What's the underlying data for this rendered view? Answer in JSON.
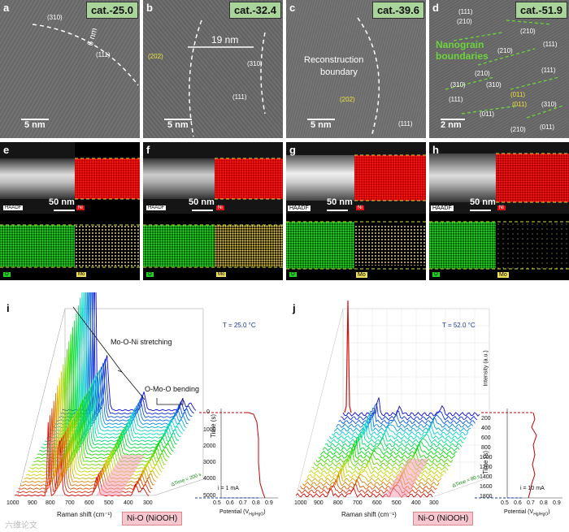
{
  "tem_panels": [
    {
      "letter": "a",
      "cat": "cat.-25.0",
      "scale": "5 nm",
      "annot": [
        "(310)",
        "6 nm",
        "(111)"
      ]
    },
    {
      "letter": "b",
      "cat": "cat.-32.4",
      "scale": "5 nm",
      "annot": [
        "(202)",
        "19 nm",
        "(310)",
        "(111)"
      ]
    },
    {
      "letter": "c",
      "cat": "cat.-39.6",
      "scale": "5 nm",
      "annot": [
        "Reconstruction",
        "boundary",
        "(202)",
        "(111)"
      ]
    },
    {
      "letter": "d",
      "cat": "cat.-51.9",
      "scale": "2 nm",
      "annot": [
        "(111)",
        "(210)",
        "(210)",
        "(210)",
        "(111)",
        "(111)",
        "(210)",
        "(310)",
        "(011)",
        "(011)",
        "(011)",
        "(310)",
        "(210)",
        "(011)",
        "(111)",
        "(310)"
      ],
      "green": [
        "Nanograin",
        "boundaries"
      ]
    }
  ],
  "eds_panels": [
    {
      "letter": "e",
      "scale": "50 nm",
      "haadf": "HAADF",
      "ni": "Ni",
      "o": "O",
      "mo": "Mo"
    },
    {
      "letter": "f",
      "scale": "50 nm",
      "haadf": "HAADF",
      "ni": "Ni",
      "o": "O",
      "mo": "Mo"
    },
    {
      "letter": "g",
      "scale": "50 nm",
      "haadf": "HAADF",
      "ni": "Ni",
      "o": "O",
      "mo": "Mo"
    },
    {
      "letter": "h",
      "scale": "50 nm",
      "haadf": "HAADF",
      "ni": "Ni",
      "o": "O",
      "mo": "Mo"
    }
  ],
  "chart_data": [
    {
      "type": "line",
      "panel": "i",
      "title": "T = 25.0 °C",
      "xlabel": "Raman shift (cm⁻¹)",
      "xticks": [
        "1000",
        "900",
        "800",
        "700",
        "600",
        "500",
        "400",
        "300"
      ],
      "ylabel": "Time (s)",
      "yticks": [
        "0",
        "1000",
        "2000",
        "3000",
        "4000",
        "5000"
      ],
      "potential_label": "Potential (V",
      "potential_sub": "Hg/HgO",
      "potential_ticks": [
        "0.5",
        "0.6",
        "0.7",
        "0.8",
        "0.9"
      ],
      "annotations": [
        "Mo-O-Ni stretching",
        "O-Mo-O bending",
        "ΔTime = 200 s",
        "i = 1 mA"
      ],
      "band_label": "Ni-O (NiOOH)",
      "peaks_cm-1": [
        820,
        760,
        560,
        350,
        310
      ]
    },
    {
      "type": "line",
      "panel": "j",
      "title": "T = 52.0 °C",
      "xlabel": "Raman shift (cm⁻¹)",
      "xticks": [
        "1000",
        "900",
        "800",
        "700",
        "600",
        "500",
        "400",
        "300"
      ],
      "ylabel": "Time (s)",
      "yticks": [
        "200",
        "400",
        "600",
        "800",
        "1000",
        "1200",
        "1400",
        "1600",
        "1800"
      ],
      "zlabel": "Intensity (a.u.)",
      "potential_label": "Potential (V",
      "potential_sub": "Hg/HgO",
      "potential_ticks": [
        "0.5",
        "0.6",
        "0.7",
        "0.8",
        "0.9"
      ],
      "annotations": [
        "ΔTime = 80 s",
        "i = 10 mA"
      ],
      "band_label": "Ni-O (NiOOH)",
      "peaks_cm-1": [
        815,
        700,
        480
      ]
    }
  ],
  "colors": {
    "cat_bg": "#a9d49a",
    "ni_map": "#e01010",
    "o_map": "#20d020",
    "mo_map": "#f0e060",
    "blue": "#1a3c9c",
    "nio_bg": "#f7c6cf"
  },
  "watermark": "六维论文"
}
